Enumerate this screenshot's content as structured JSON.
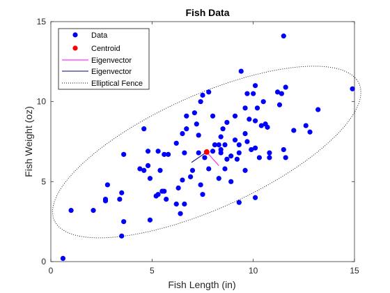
{
  "chart_data": {
    "type": "scatter",
    "title": "Fish Data",
    "xlabel": "Fish Length (in)",
    "ylabel": "Fish Weight (oz)",
    "xlim": [
      0,
      15
    ],
    "ylim": [
      0,
      15
    ],
    "xticks": [
      "0",
      "5",
      "10",
      "15"
    ],
    "yticks": [
      "0",
      "5",
      "10",
      "15"
    ],
    "grid": false,
    "legend_position": "top-left",
    "legend": [
      "Data",
      "Centroid",
      "Eigenvector",
      "Eigenvector",
      "Elliptical Fence"
    ],
    "colors": {
      "data": "#0000ff",
      "centroid": "#ff0000",
      "eigenvector1": "#ff00ff",
      "eigenvector2": "#00008b",
      "fence": "#000000"
    },
    "centroid": {
      "x": 7.7,
      "y": 6.85
    },
    "eigenvector1": {
      "from": [
        7.7,
        6.85
      ],
      "to": [
        8.3,
        6.0
      ]
    },
    "eigenvector2": {
      "from": [
        7.7,
        6.85
      ],
      "to": [
        6.95,
        6.2
      ]
    },
    "fence": {
      "cx": 7.7,
      "cy": 6.85,
      "semi_major": 8.68,
      "semi_minor": 3.38,
      "angle_deg": 31.4
    },
    "points": [
      {
        "x": 0.6,
        "y": 0.2
      },
      {
        "x": 1.0,
        "y": 3.2
      },
      {
        "x": 2.1,
        "y": 3.2
      },
      {
        "x": 2.7,
        "y": 3.8
      },
      {
        "x": 2.7,
        "y": 3.9
      },
      {
        "x": 2.8,
        "y": 4.8
      },
      {
        "x": 3.4,
        "y": 3.9
      },
      {
        "x": 3.5,
        "y": 4.3
      },
      {
        "x": 3.5,
        "y": 1.6
      },
      {
        "x": 3.6,
        "y": 2.5
      },
      {
        "x": 3.6,
        "y": 6.7
      },
      {
        "x": 4.4,
        "y": 5.8
      },
      {
        "x": 4.6,
        "y": 5.7
      },
      {
        "x": 4.6,
        "y": 8.3
      },
      {
        "x": 4.8,
        "y": 6.9
      },
      {
        "x": 4.8,
        "y": 6.0
      },
      {
        "x": 4.9,
        "y": 5.2
      },
      {
        "x": 4.9,
        "y": 2.6
      },
      {
        "x": 5.2,
        "y": 4.1
      },
      {
        "x": 5.3,
        "y": 6.9
      },
      {
        "x": 5.3,
        "y": 4.2
      },
      {
        "x": 5.4,
        "y": 5.7
      },
      {
        "x": 5.5,
        "y": 4.4
      },
      {
        "x": 5.6,
        "y": 6.7
      },
      {
        "x": 5.6,
        "y": 4.4
      },
      {
        "x": 5.7,
        "y": 3.9
      },
      {
        "x": 5.8,
        "y": 6.7
      },
      {
        "x": 6.2,
        "y": 7.4
      },
      {
        "x": 6.2,
        "y": 3.6
      },
      {
        "x": 6.3,
        "y": 4.6
      },
      {
        "x": 6.4,
        "y": 3.0
      },
      {
        "x": 6.5,
        "y": 8.0
      },
      {
        "x": 6.5,
        "y": 5.1
      },
      {
        "x": 6.6,
        "y": 3.6
      },
      {
        "x": 6.6,
        "y": 6.8
      },
      {
        "x": 6.7,
        "y": 8.3
      },
      {
        "x": 6.7,
        "y": 9.1
      },
      {
        "x": 6.9,
        "y": 5.3
      },
      {
        "x": 7.0,
        "y": 5.7
      },
      {
        "x": 7.1,
        "y": 9.3
      },
      {
        "x": 7.2,
        "y": 8.6
      },
      {
        "x": 7.3,
        "y": 6.8
      },
      {
        "x": 7.3,
        "y": 7.9
      },
      {
        "x": 7.4,
        "y": 4.8
      },
      {
        "x": 7.4,
        "y": 10.0
      },
      {
        "x": 7.5,
        "y": 10.4
      },
      {
        "x": 7.5,
        "y": 4.2
      },
      {
        "x": 7.6,
        "y": 6.5
      },
      {
        "x": 7.8,
        "y": 10.6
      },
      {
        "x": 7.8,
        "y": 5.8
      },
      {
        "x": 8.0,
        "y": 6.9
      },
      {
        "x": 8.0,
        "y": 9.1
      },
      {
        "x": 8.1,
        "y": 7.3
      },
      {
        "x": 8.3,
        "y": 7.3
      },
      {
        "x": 8.3,
        "y": 5.2
      },
      {
        "x": 8.4,
        "y": 7.8
      },
      {
        "x": 8.4,
        "y": 6.8
      },
      {
        "x": 8.4,
        "y": 7.0
      },
      {
        "x": 8.5,
        "y": 8.3
      },
      {
        "x": 8.6,
        "y": 7.3
      },
      {
        "x": 8.6,
        "y": 5.8
      },
      {
        "x": 8.7,
        "y": 8.7
      },
      {
        "x": 8.7,
        "y": 6.4
      },
      {
        "x": 8.9,
        "y": 5.0
      },
      {
        "x": 8.9,
        "y": 6.6
      },
      {
        "x": 9.1,
        "y": 7.6
      },
      {
        "x": 9.1,
        "y": 9.1
      },
      {
        "x": 9.2,
        "y": 6.4
      },
      {
        "x": 9.3,
        "y": 7.3
      },
      {
        "x": 9.3,
        "y": 6.8
      },
      {
        "x": 9.3,
        "y": 3.7
      },
      {
        "x": 9.4,
        "y": 11.9
      },
      {
        "x": 9.6,
        "y": 5.7
      },
      {
        "x": 9.6,
        "y": 9.6
      },
      {
        "x": 9.6,
        "y": 8.0
      },
      {
        "x": 9.7,
        "y": 10.5
      },
      {
        "x": 9.7,
        "y": 7.5
      },
      {
        "x": 9.8,
        "y": 8.9
      },
      {
        "x": 9.9,
        "y": 7.0
      },
      {
        "x": 10.0,
        "y": 10.5
      },
      {
        "x": 10.1,
        "y": 8.8
      },
      {
        "x": 10.1,
        "y": 7.1
      },
      {
        "x": 10.1,
        "y": 11.0
      },
      {
        "x": 10.1,
        "y": 4.0
      },
      {
        "x": 10.2,
        "y": 9.6
      },
      {
        "x": 10.3,
        "y": 6.5
      },
      {
        "x": 10.4,
        "y": 8.5
      },
      {
        "x": 10.5,
        "y": 10.0
      },
      {
        "x": 10.6,
        "y": 8.6
      },
      {
        "x": 10.7,
        "y": 8.4
      },
      {
        "x": 10.8,
        "y": 6.8
      },
      {
        "x": 10.8,
        "y": 6.5
      },
      {
        "x": 11.2,
        "y": 10.6
      },
      {
        "x": 11.4,
        "y": 10.5
      },
      {
        "x": 11.3,
        "y": 9.8
      },
      {
        "x": 11.5,
        "y": 7.0
      },
      {
        "x": 11.6,
        "y": 10.9
      },
      {
        "x": 11.6,
        "y": 6.5
      },
      {
        "x": 11.5,
        "y": 14.1
      },
      {
        "x": 12.0,
        "y": 8.2
      },
      {
        "x": 12.6,
        "y": 8.5
      },
      {
        "x": 12.8,
        "y": 8.1
      },
      {
        "x": 13.2,
        "y": 9.5
      },
      {
        "x": 14.9,
        "y": 10.8
      }
    ]
  }
}
